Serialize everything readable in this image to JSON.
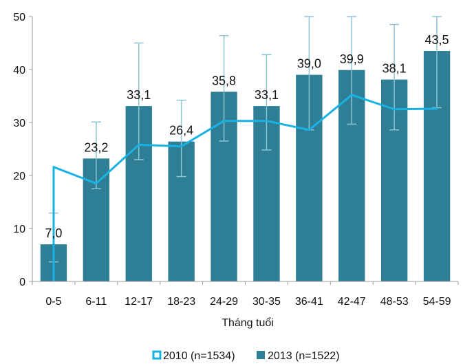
{
  "chart_data": {
    "type": "bar",
    "categories": [
      "0-5",
      "6-11",
      "12-17",
      "18-23",
      "24-29",
      "30-35",
      "36-41",
      "42-47",
      "48-53",
      "54-59"
    ],
    "xlabel": "Tháng tuổi",
    "ylabel": "",
    "ylim": [
      0,
      50
    ],
    "yticks": [
      0,
      10,
      20,
      30,
      40,
      50
    ],
    "grid": false,
    "legend": "bottom",
    "series": [
      {
        "name": "2013 (n=1522)",
        "kind": "bar",
        "color": "#2e7f96",
        "values": [
          7.0,
          23.2,
          33.1,
          26.4,
          35.8,
          33.1,
          39.0,
          39.9,
          38.1,
          43.5
        ],
        "labels": [
          "7,0",
          "23,2",
          "33,1",
          "26,4",
          "35,8",
          "33,1",
          "39,0",
          "39,9",
          "38,1",
          "43,5"
        ],
        "error_low": [
          3.7,
          17.5,
          23.0,
          19.8,
          26.5,
          24.8,
          28.6,
          29.7,
          28.6,
          32.8
        ],
        "error_high": [
          12.9,
          30.1,
          45.0,
          34.2,
          46.4,
          42.8,
          50.0,
          50.0,
          48.5,
          50.0
        ]
      },
      {
        "name": "2010 (n=1534)",
        "kind": "line",
        "color": "#1ab2e2",
        "values": [
          21.6,
          18.5,
          25.8,
          25.5,
          30.3,
          30.3,
          28.6,
          35.2,
          32.5,
          32.6
        ]
      }
    ]
  }
}
